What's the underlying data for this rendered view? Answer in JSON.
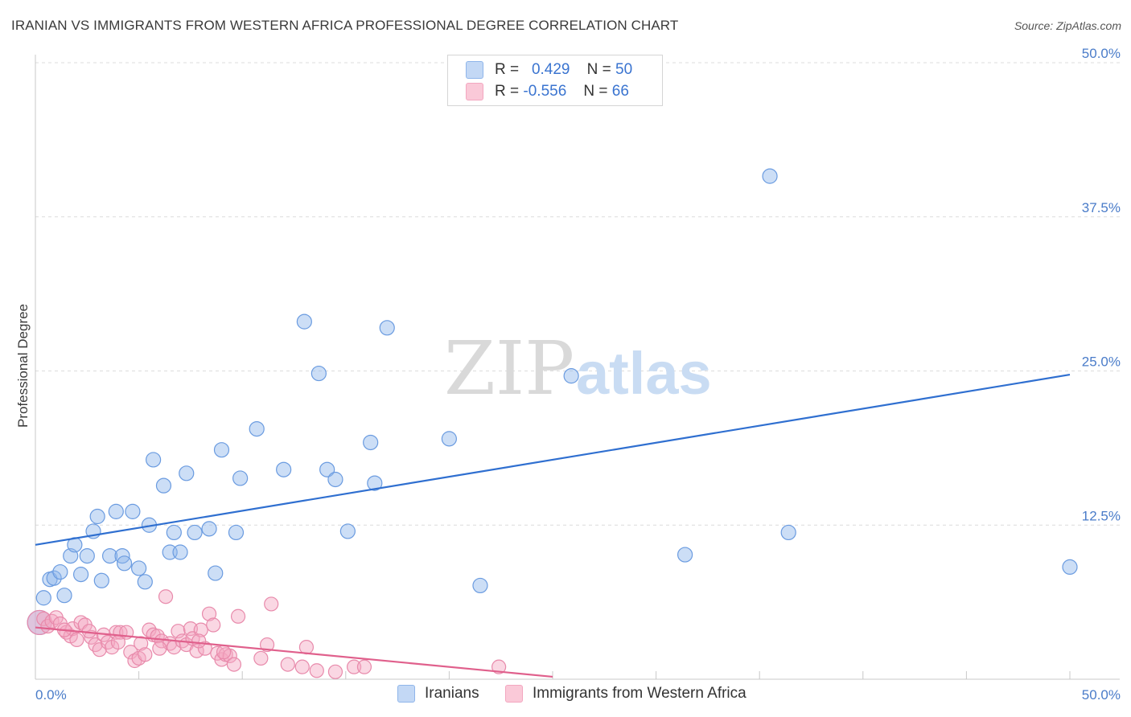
{
  "header": {
    "title": "IRANIAN VS IMMIGRANTS FROM WESTERN AFRICA PROFESSIONAL DEGREE CORRELATION CHART",
    "source": "Source: ZipAtlas.com"
  },
  "legend_stats": [
    {
      "r_label": "R =",
      "r_value": "0.429",
      "n_label": "N =",
      "n_value": "50",
      "color": "#8fb5ea"
    },
    {
      "r_label": "R =",
      "r_value": "-0.556",
      "n_label": "N =",
      "n_value": "66",
      "color": "#f3a7c0"
    }
  ],
  "watermark": {
    "left": "ZIP",
    "right": "atlas"
  },
  "chart_data": {
    "type": "scatter",
    "ylabel": "Professional Degree",
    "x_tick_labels": [
      "0.0%",
      "50.0%"
    ],
    "y_tick_labels": [
      "12.5%",
      "25.0%",
      "37.5%",
      "50.0%"
    ],
    "xlim": [
      0,
      50
    ],
    "ylim": [
      0,
      50
    ],
    "grid": true,
    "series": [
      {
        "name": "Iranians",
        "color": "#8fb5ea",
        "stroke": "#6a9be0",
        "trend_color": "#2f6fd0",
        "trend": [
          [
            0,
            10.9
          ],
          [
            50,
            24.7
          ]
        ],
        "points": [
          [
            0.4,
            6.6
          ],
          [
            0.7,
            8.1
          ],
          [
            0.9,
            8.2
          ],
          [
            1.2,
            8.7
          ],
          [
            1.4,
            6.8
          ],
          [
            1.7,
            10.0
          ],
          [
            1.9,
            10.9
          ],
          [
            2.2,
            8.5
          ],
          [
            2.5,
            10.0
          ],
          [
            2.8,
            12.0
          ],
          [
            3.0,
            13.2
          ],
          [
            3.2,
            8.0
          ],
          [
            3.6,
            10.0
          ],
          [
            3.9,
            13.6
          ],
          [
            4.2,
            10.0
          ],
          [
            4.3,
            9.4
          ],
          [
            4.7,
            13.6
          ],
          [
            5.0,
            9.0
          ],
          [
            5.3,
            7.9
          ],
          [
            5.5,
            12.5
          ],
          [
            5.7,
            17.8
          ],
          [
            6.2,
            15.7
          ],
          [
            6.5,
            10.3
          ],
          [
            6.7,
            11.9
          ],
          [
            7.0,
            10.3
          ],
          [
            7.3,
            16.7
          ],
          [
            7.7,
            11.9
          ],
          [
            8.4,
            12.2
          ],
          [
            8.7,
            8.6
          ],
          [
            9.0,
            18.6
          ],
          [
            9.7,
            11.9
          ],
          [
            9.9,
            16.3
          ],
          [
            10.7,
            20.3
          ],
          [
            12.0,
            17.0
          ],
          [
            13.0,
            29.0
          ],
          [
            13.7,
            24.8
          ],
          [
            14.1,
            17.0
          ],
          [
            14.5,
            16.2
          ],
          [
            15.1,
            12.0
          ],
          [
            16.2,
            19.2
          ],
          [
            16.4,
            15.9
          ],
          [
            17.0,
            28.5
          ],
          [
            20.0,
            19.5
          ],
          [
            21.5,
            7.6
          ],
          [
            25.9,
            24.6
          ],
          [
            31.4,
            10.1
          ],
          [
            35.5,
            40.8
          ],
          [
            36.4,
            11.9
          ],
          [
            50.0,
            9.1
          ],
          [
            0.2,
            4.6
          ]
        ]
      },
      {
        "name": "Immigrants from Western Africa",
        "color": "#f3a7c0",
        "stroke": "#e88aab",
        "trend_color": "#e0608c",
        "trend": [
          [
            0,
            4.2
          ],
          [
            25,
            0.2
          ]
        ],
        "points": [
          [
            0.2,
            4.6
          ],
          [
            0.4,
            4.9
          ],
          [
            0.6,
            4.3
          ],
          [
            0.8,
            4.7
          ],
          [
            1.0,
            5.0
          ],
          [
            1.2,
            4.5
          ],
          [
            1.5,
            3.8
          ],
          [
            1.7,
            3.5
          ],
          [
            1.8,
            4.1
          ],
          [
            2.0,
            3.2
          ],
          [
            2.2,
            4.6
          ],
          [
            2.4,
            4.4
          ],
          [
            2.7,
            3.4
          ],
          [
            2.9,
            2.8
          ],
          [
            3.1,
            2.4
          ],
          [
            3.3,
            3.6
          ],
          [
            3.5,
            3.0
          ],
          [
            3.7,
            2.6
          ],
          [
            3.9,
            3.8
          ],
          [
            4.1,
            3.8
          ],
          [
            4.4,
            3.8
          ],
          [
            4.6,
            2.2
          ],
          [
            4.8,
            1.5
          ],
          [
            5.0,
            1.7
          ],
          [
            5.1,
            2.9
          ],
          [
            5.3,
            2.0
          ],
          [
            5.5,
            4.0
          ],
          [
            5.7,
            3.6
          ],
          [
            5.9,
            3.5
          ],
          [
            6.1,
            3.1
          ],
          [
            6.3,
            6.7
          ],
          [
            6.5,
            2.9
          ],
          [
            6.7,
            2.6
          ],
          [
            6.9,
            3.9
          ],
          [
            7.1,
            3.1
          ],
          [
            7.3,
            2.8
          ],
          [
            7.5,
            4.1
          ],
          [
            7.6,
            3.3
          ],
          [
            7.8,
            2.3
          ],
          [
            8.0,
            4.0
          ],
          [
            8.2,
            2.5
          ],
          [
            8.4,
            5.3
          ],
          [
            8.6,
            4.4
          ],
          [
            8.8,
            2.1
          ],
          [
            9.0,
            1.6
          ],
          [
            9.2,
            2.0
          ],
          [
            9.4,
            1.9
          ],
          [
            9.6,
            1.2
          ],
          [
            9.8,
            5.1
          ],
          [
            10.9,
            1.7
          ],
          [
            11.2,
            2.8
          ],
          [
            11.4,
            6.1
          ],
          [
            12.2,
            1.2
          ],
          [
            12.9,
            1.0
          ],
          [
            13.1,
            2.6
          ],
          [
            13.6,
            0.7
          ],
          [
            14.5,
            0.6
          ],
          [
            15.4,
            1.0
          ],
          [
            15.9,
            1.0
          ],
          [
            22.4,
            1.0
          ],
          [
            1.4,
            4.0
          ],
          [
            2.6,
            3.9
          ],
          [
            4.0,
            3.0
          ],
          [
            6.0,
            2.5
          ],
          [
            7.9,
            3.1
          ],
          [
            9.1,
            2.2
          ]
        ]
      }
    ]
  }
}
